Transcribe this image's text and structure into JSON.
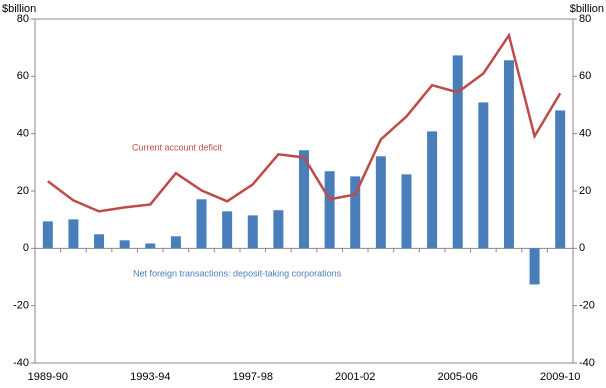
{
  "chart_data": {
    "type": "bar-line",
    "y_unit_label": "$billion",
    "y2_unit_label": "$billion",
    "categories": [
      "1989-90",
      null,
      null,
      null,
      "1993-94",
      null,
      null,
      null,
      "1997-98",
      null,
      null,
      null,
      "2001-02",
      null,
      null,
      null,
      "2005-06",
      null,
      null,
      null,
      "2009-10"
    ],
    "series": [
      {
        "name": "Net foreign transactions: deposit-taking corporations",
        "type": "bar",
        "color": "#4a7ebb",
        "values": [
          9.4,
          10.1,
          4.9,
          2.8,
          1.7,
          4.2,
          17.1,
          12.9,
          11.5,
          13.3,
          34.2,
          26.9,
          25.1,
          32.1,
          25.8,
          40.8,
          67.3,
          50.9,
          65.6,
          -12.6,
          48.1
        ]
      },
      {
        "name": "Current account deficit",
        "type": "line",
        "axis": "y2",
        "color": "#be4b48",
        "values": [
          23.4,
          16.7,
          12.9,
          14.3,
          15.3,
          26.2,
          20.2,
          16.4,
          22.3,
          32.8,
          31.7,
          17.1,
          18.8,
          38.0,
          46.0,
          56.9,
          54.4,
          61.0,
          74.3,
          39.1,
          54.1
        ]
      }
    ],
    "ylim": [
      -40,
      80
    ],
    "yticks": [
      -40,
      -20,
      0,
      20,
      40,
      60,
      80
    ],
    "y2lim": [
      -40,
      80
    ],
    "y2ticks": [
      -40,
      -20,
      0,
      20,
      40,
      60,
      80
    ],
    "grid": false
  }
}
